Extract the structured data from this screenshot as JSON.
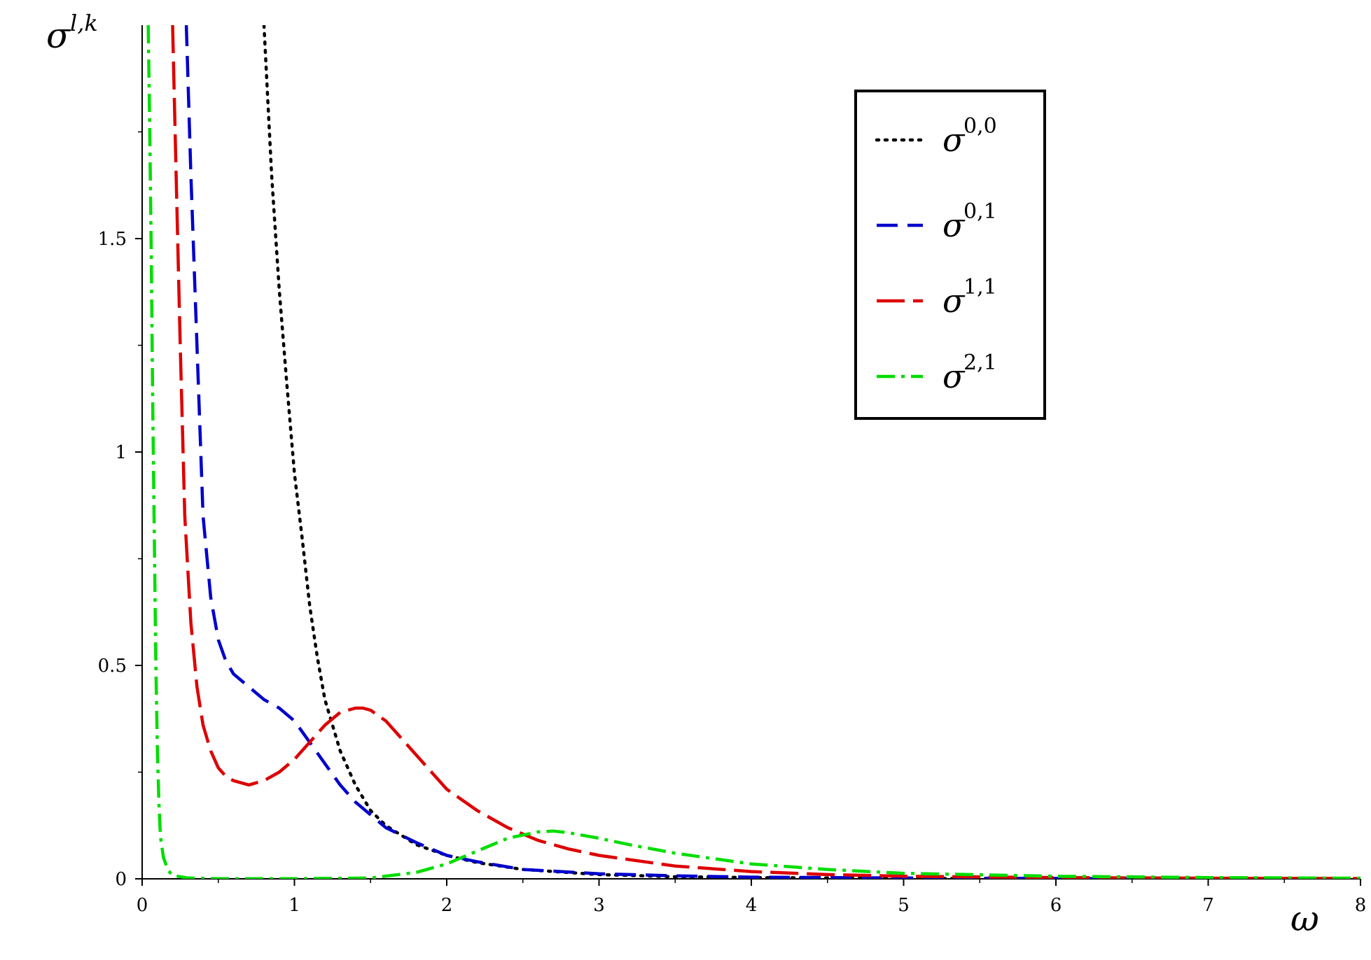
{
  "chart_data": {
    "type": "line",
    "title": "",
    "xlabel": "ω",
    "ylabel": {
      "base": "σ",
      "sup": "l,k"
    },
    "xlim": [
      0,
      8
    ],
    "ylim": [
      0,
      2
    ],
    "x_ticks": [
      "0",
      "1",
      "2",
      "3",
      "4",
      "5",
      "6",
      "7",
      "8"
    ],
    "y_ticks": [
      {
        "value": 0,
        "label": "0"
      },
      {
        "value": 0.5,
        "label": "0.5"
      },
      {
        "value": 1,
        "label": "1"
      },
      {
        "value": 1.5,
        "label": "1.5"
      }
    ],
    "grid": false,
    "legend": "top-right",
    "series": [
      {
        "name": "σ^{0,0}",
        "label": {
          "base": "σ",
          "sup": "0,0"
        },
        "color": "#000000",
        "style": "dotted",
        "x": [
          0.8,
          0.85,
          0.9,
          0.95,
          1.0,
          1.05,
          1.1,
          1.15,
          1.2,
          1.3,
          1.4,
          1.5,
          1.6,
          1.8,
          2.0,
          2.2,
          2.5,
          3.0,
          3.5,
          4.0,
          5.0,
          6.0,
          7.0,
          8.0
        ],
        "y": [
          2.0,
          1.65,
          1.38,
          1.16,
          0.95,
          0.8,
          0.64,
          0.52,
          0.42,
          0.3,
          0.22,
          0.16,
          0.125,
          0.08,
          0.055,
          0.038,
          0.022,
          0.01,
          0.005,
          0.003,
          0.001,
          0.0005,
          0.0002,
          0.0001
        ]
      },
      {
        "name": "σ^{0,1}",
        "label": {
          "base": "σ",
          "sup": "0,1"
        },
        "color": "#0000cc",
        "style": "dashed",
        "x": [
          0.29,
          0.32,
          0.36,
          0.4,
          0.45,
          0.5,
          0.55,
          0.6,
          0.7,
          0.8,
          0.9,
          1.0,
          1.1,
          1.2,
          1.3,
          1.4,
          1.5,
          1.6,
          1.8,
          2.0,
          2.2,
          2.5,
          3.0,
          3.5,
          4.0,
          5.0,
          6.0,
          7.0,
          8.0
        ],
        "y": [
          2.0,
          1.65,
          1.25,
          0.85,
          0.66,
          0.56,
          0.51,
          0.48,
          0.45,
          0.42,
          0.4,
          0.37,
          0.32,
          0.27,
          0.22,
          0.18,
          0.15,
          0.12,
          0.085,
          0.055,
          0.04,
          0.022,
          0.012,
          0.007,
          0.004,
          0.002,
          0.001,
          0.0005,
          0.0002
        ]
      },
      {
        "name": "σ^{1,1}",
        "label": {
          "base": "σ",
          "sup": "1,1"
        },
        "color": "#dd0000",
        "style": "long-dash",
        "x": [
          0.2,
          0.22,
          0.25,
          0.28,
          0.32,
          0.36,
          0.4,
          0.45,
          0.5,
          0.55,
          0.6,
          0.7,
          0.8,
          0.9,
          1.0,
          1.1,
          1.2,
          1.3,
          1.4,
          1.45,
          1.5,
          1.6,
          1.7,
          1.8,
          2.0,
          2.2,
          2.4,
          2.6,
          2.8,
          3.0,
          3.5,
          4.0,
          4.5,
          5.0,
          6.0,
          7.0,
          8.0
        ],
        "y": [
          2.0,
          1.7,
          1.25,
          0.85,
          0.6,
          0.45,
          0.36,
          0.3,
          0.26,
          0.24,
          0.23,
          0.22,
          0.23,
          0.25,
          0.28,
          0.32,
          0.36,
          0.39,
          0.4,
          0.4,
          0.395,
          0.37,
          0.33,
          0.29,
          0.21,
          0.16,
          0.12,
          0.09,
          0.07,
          0.055,
          0.03,
          0.017,
          0.01,
          0.006,
          0.003,
          0.0015,
          0.0008
        ]
      },
      {
        "name": "σ^{2,1}",
        "label": {
          "base": "σ",
          "sup": "2,1"
        },
        "color": "#00dd00",
        "style": "dash-dot",
        "x": [
          0.04,
          0.05,
          0.06,
          0.07,
          0.08,
          0.09,
          0.1,
          0.11,
          0.12,
          0.14,
          0.17,
          0.2,
          0.3,
          0.5,
          1.0,
          1.5,
          1.8,
          2.0,
          2.2,
          2.4,
          2.6,
          2.7,
          2.8,
          3.0,
          3.2,
          3.5,
          4.0,
          4.5,
          5.0,
          6.0,
          7.0,
          8.0
        ],
        "y": [
          2.0,
          1.75,
          1.45,
          1.1,
          0.8,
          0.5,
          0.3,
          0.18,
          0.1,
          0.05,
          0.02,
          0.008,
          0.002,
          0.0005,
          0.0003,
          0.002,
          0.015,
          0.035,
          0.065,
          0.095,
          0.11,
          0.112,
          0.108,
          0.095,
          0.08,
          0.06,
          0.035,
          0.022,
          0.013,
          0.006,
          0.003,
          0.0015
        ]
      }
    ]
  }
}
